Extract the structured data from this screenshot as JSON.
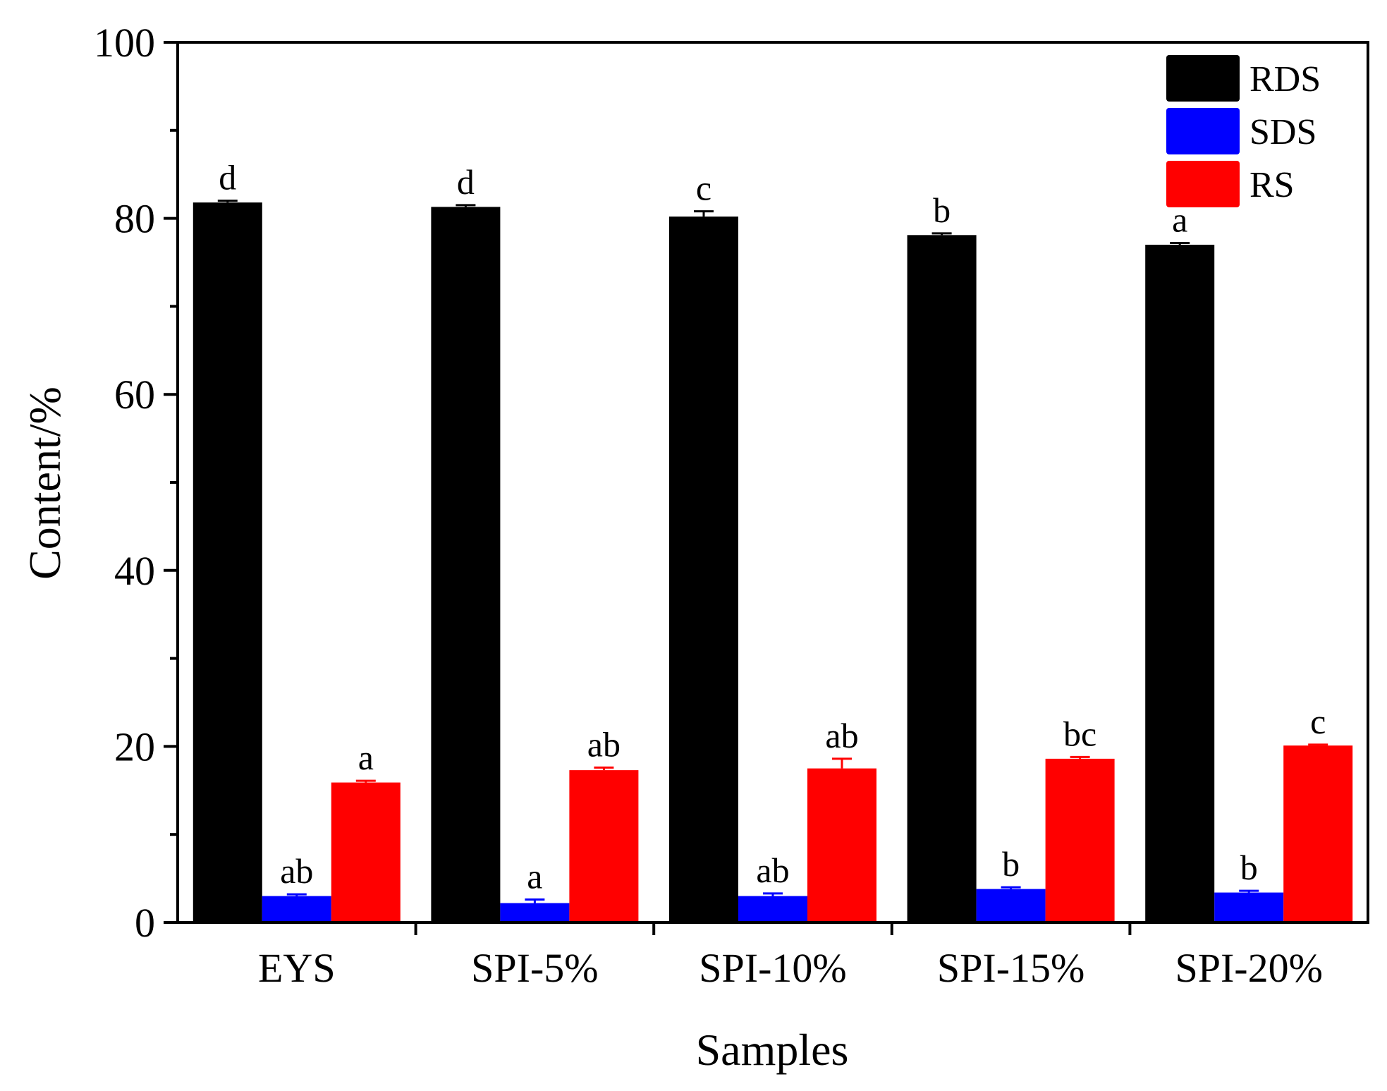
{
  "chart_data": {
    "type": "bar",
    "xlabel": "Samples",
    "ylabel": "Content/%",
    "ylim": [
      0,
      100
    ],
    "yticks": [
      0,
      20,
      40,
      60,
      80,
      100
    ],
    "categories": [
      "EYS",
      "SPI-5%",
      "SPI-10%",
      "SPI-15%",
      "SPI-20%"
    ],
    "legend_position": "top-right",
    "series": [
      {
        "name": "RDS",
        "color": "#000000",
        "values": [
          81.8,
          81.3,
          80.2,
          78.1,
          77.0
        ],
        "errors": [
          0.2,
          0.2,
          0.6,
          0.2,
          0.2
        ],
        "significance": [
          "d",
          "d",
          "c",
          "b",
          "a"
        ]
      },
      {
        "name": "SDS",
        "color": "#0000ff",
        "values": [
          3.0,
          2.2,
          3.0,
          3.8,
          3.4
        ],
        "errors": [
          0.2,
          0.4,
          0.3,
          0.2,
          0.2
        ],
        "significance": [
          "ab",
          "a",
          "ab",
          "b",
          "b"
        ]
      },
      {
        "name": "RS",
        "color": "#ff0000",
        "values": [
          15.9,
          17.3,
          17.5,
          18.6,
          20.1
        ],
        "errors": [
          0.2,
          0.3,
          1.1,
          0.2,
          0.1
        ],
        "significance": [
          "a",
          "ab",
          "ab",
          "bc",
          "c"
        ]
      }
    ]
  }
}
